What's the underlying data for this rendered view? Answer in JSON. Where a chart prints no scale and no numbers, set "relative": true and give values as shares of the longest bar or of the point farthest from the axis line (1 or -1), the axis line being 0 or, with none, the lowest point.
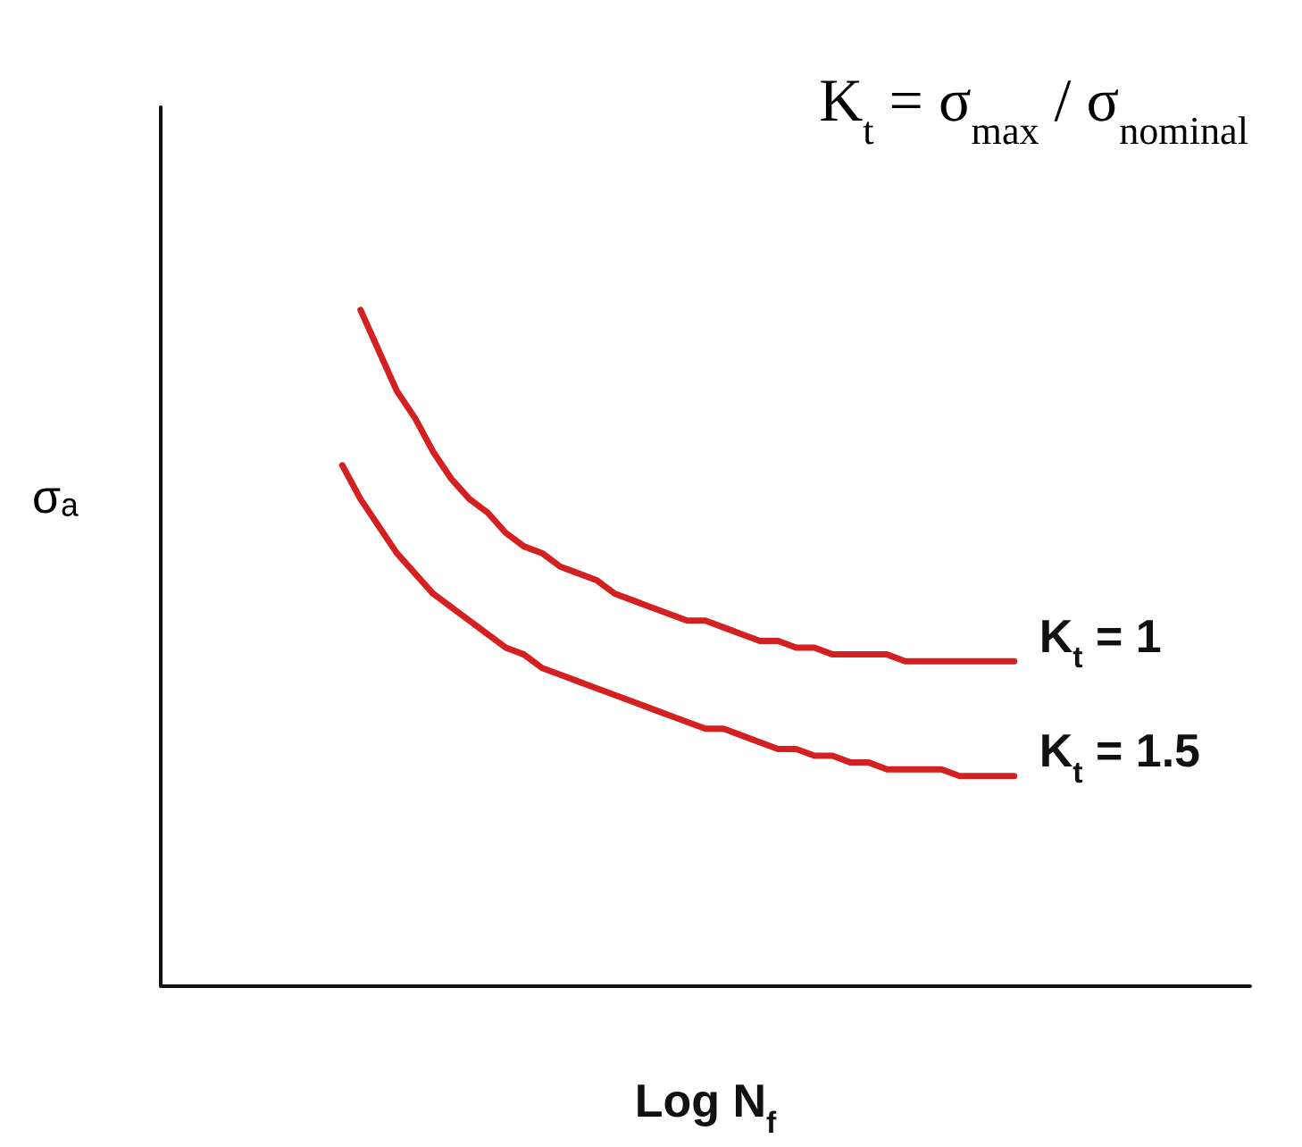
{
  "chart_data": {
    "type": "line",
    "relative": true,
    "xlabel": "Log N$_{f}$",
    "ylabel": "σₐ",
    "annotations": [
      "K$_{t}$ = σ$_{max}$ / σ$_{nominal}$"
    ],
    "categories": [
      null,
      null,
      null,
      null,
      null,
      null,
      null,
      null,
      null,
      null,
      null,
      null,
      null,
      null,
      null,
      null,
      null,
      null,
      null,
      null,
      null,
      null,
      null,
      null,
      null,
      null,
      null,
      null,
      null,
      null,
      null,
      null,
      null,
      null,
      null,
      null,
      null,
      null,
      null,
      null,
      null,
      null,
      null,
      null,
      null,
      null,
      null,
      null,
      null,
      null,
      null,
      null,
      null,
      null,
      null,
      null,
      null,
      null,
      null,
      null,
      null
    ],
    "legend": false,
    "grid": false,
    "marker": "none",
    "line_style": "solid",
    "series": [
      {
        "name": "K$_{t}$ = 1",
        "color": "#d42020",
        "values": [
          null,
          null,
          null,
          null,
          null,
          null,
          null,
          null,
          null,
          null,
          null,
          1.0,
          0.94,
          0.88,
          0.84,
          0.79,
          0.75,
          0.72,
          0.7,
          0.67,
          0.65,
          0.64,
          0.62,
          0.61,
          0.6,
          0.58,
          0.57,
          0.56,
          0.55,
          0.54,
          0.54,
          0.53,
          0.52,
          0.51,
          0.51,
          0.5,
          0.5,
          0.49,
          0.49,
          0.49,
          0.49,
          0.48,
          0.48,
          0.48,
          0.48,
          0.48,
          0.48,
          0.48,
          null,
          null,
          null,
          null,
          null,
          null,
          null,
          null,
          null,
          null,
          null,
          null,
          null
        ]
      },
      {
        "name": "K$_{t}$ = 1.5",
        "color": "#d42020",
        "values": [
          null,
          null,
          null,
          null,
          null,
          null,
          null,
          null,
          null,
          null,
          0.77,
          0.72,
          0.68,
          0.64,
          0.61,
          0.58,
          0.56,
          0.54,
          0.52,
          0.5,
          0.49,
          0.47,
          0.46,
          0.45,
          0.44,
          0.43,
          0.42,
          0.41,
          0.4,
          0.39,
          0.38,
          0.38,
          0.37,
          0.36,
          0.35,
          0.35,
          0.34,
          0.34,
          0.33,
          0.33,
          0.32,
          0.32,
          0.32,
          0.32,
          0.31,
          0.31,
          0.31,
          0.31,
          null,
          null,
          null,
          null,
          null,
          null,
          null,
          null,
          null,
          null,
          null,
          null,
          null
        ]
      }
    ]
  }
}
